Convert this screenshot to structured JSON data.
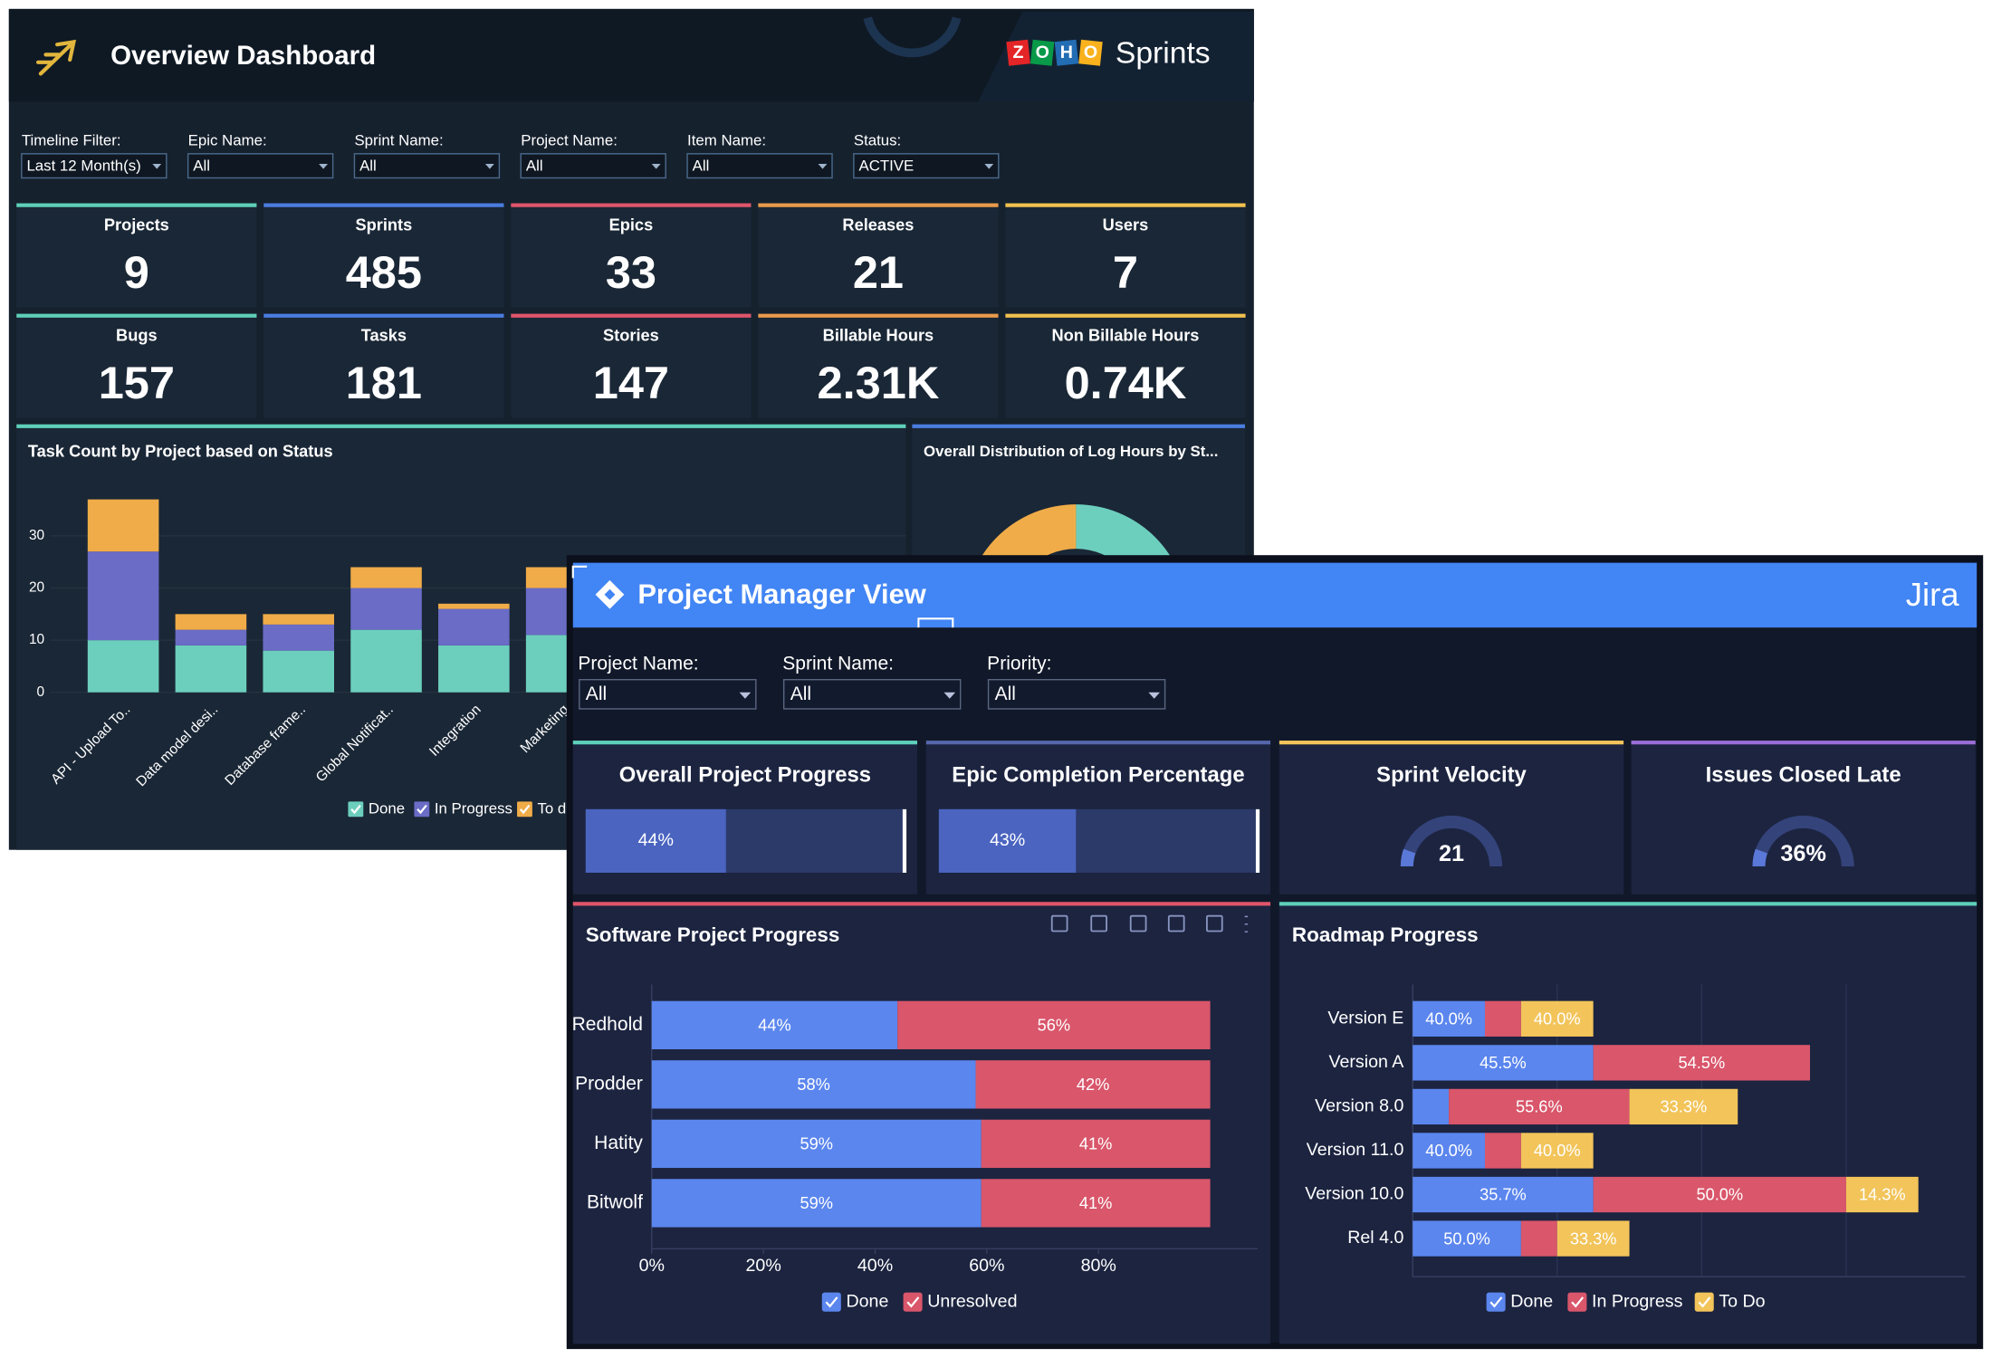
{
  "overview": {
    "title": "Overview Dashboard",
    "logo": [
      "Z",
      "O",
      "H",
      "O"
    ],
    "brand": "Sprints",
    "filters": [
      {
        "label": "Timeline Filter:",
        "value": "Last 12 Month(s)"
      },
      {
        "label": "Epic Name:",
        "value": "All"
      },
      {
        "label": "Sprint Name:",
        "value": "All"
      },
      {
        "label": "Project Name:",
        "value": "All"
      },
      {
        "label": "Item Name:",
        "value": "All"
      },
      {
        "label": "Status:",
        "value": "ACTIVE"
      }
    ],
    "kpis": [
      {
        "label": "Projects",
        "value": "9",
        "color": "#5ecfb9"
      },
      {
        "label": "Sprints",
        "value": "485",
        "color": "#4a7de0"
      },
      {
        "label": "Epics",
        "value": "33",
        "color": "#e0556a"
      },
      {
        "label": "Releases",
        "value": "21",
        "color": "#e99a4a"
      },
      {
        "label": "Users",
        "value": "7",
        "color": "#f2c14e"
      },
      {
        "label": "Bugs",
        "value": "157",
        "color": "#5ecfb9"
      },
      {
        "label": "Tasks",
        "value": "181",
        "color": "#4a7de0"
      },
      {
        "label": "Stories",
        "value": "147",
        "color": "#e0556a"
      },
      {
        "label": "Billable Hours",
        "value": "2.31K",
        "color": "#e99a4a"
      },
      {
        "label": "Non Billable Hours",
        "value": "0.74K",
        "color": "#f2c14e"
      }
    ],
    "donut_title": "Overall Distribution of Log Hours by St..."
  },
  "jira": {
    "title": "Project Manager View",
    "brand": "Jira",
    "filters": [
      {
        "label": "Project Name:",
        "value": "All"
      },
      {
        "label": "Sprint Name:",
        "value": "All"
      },
      {
        "label": "Priority:",
        "value": "All"
      }
    ],
    "kpis": [
      {
        "title": "Overall Project Progress",
        "value": 44,
        "label": "44%",
        "display": "progress",
        "color": "#5ecfb9"
      },
      {
        "title": "Epic Completion Percentage",
        "value": 43,
        "label": "43%",
        "display": "progress",
        "color": "#5566aa"
      },
      {
        "title": "Sprint Velocity",
        "value": 21,
        "display": "gauge",
        "color": "#f2c45a"
      },
      {
        "title": "Issues Closed Late",
        "value": 36,
        "label": "36%",
        "display": "gauge",
        "color": "#9b6dd6"
      }
    ]
  },
  "chart_data": [
    {
      "type": "stacked_bar",
      "title": "Task Count by Project based on Status",
      "categories": [
        "API - Upload To..",
        "Data model desi..",
        "Database frame..",
        "Global Notificat..",
        "Integration",
        "Marketing"
      ],
      "series": [
        {
          "name": "Done",
          "color": "#6ccfbd",
          "values": [
            10,
            9,
            8,
            12,
            9,
            11
          ]
        },
        {
          "name": "In Progress",
          "color": "#6a6cc6",
          "values": [
            17,
            3,
            5,
            8,
            7,
            9
          ]
        },
        {
          "name": "To do",
          "color": "#f0ac48",
          "values": [
            10,
            3,
            2,
            4,
            1,
            4
          ]
        }
      ],
      "ylim": [
        0,
        38
      ],
      "yticks": [
        0,
        10,
        20,
        30
      ],
      "grid": true
    },
    {
      "type": "hbar",
      "title": "Software Project Progress",
      "categories": [
        "Redhold",
        "Prodder",
        "Hatity",
        "Bitwolf"
      ],
      "series": [
        {
          "name": "Done",
          "color": "#5b86ee",
          "values": [
            44,
            58,
            59,
            59
          ],
          "value_labels": [
            "44%",
            "58%",
            "59%",
            "59%"
          ]
        },
        {
          "name": "Unresolved",
          "color": "#d9566b",
          "values": [
            56,
            42,
            41,
            41
          ],
          "value_labels": [
            "56%",
            "42%",
            "41%",
            "41%"
          ]
        }
      ],
      "xlim": [
        0,
        108.5
      ],
      "xticks": [
        {
          "value": 0,
          "label": "0%"
        },
        {
          "value": 20,
          "label": "20%"
        },
        {
          "value": 40,
          "label": "40%"
        },
        {
          "value": 60,
          "label": "60%"
        },
        {
          "value": 80,
          "label": "80%"
        }
      ]
    },
    {
      "type": "hbar",
      "title": "Roadmap Progress",
      "categories": [
        "Version E",
        "Version A",
        "Version 8.0",
        "Version 11.0",
        "Version 10.0",
        "Rel 4.0"
      ],
      "series": [
        {
          "name": "Done",
          "color": "#5b86ee",
          "values": [
            2,
            5,
            1,
            2,
            5,
            3
          ],
          "percent_labels": [
            "40.0%",
            "45.5%",
            null,
            "40.0%",
            "35.7%",
            "50.0%"
          ]
        },
        {
          "name": "In Progress",
          "color": "#d9566b",
          "values": [
            1,
            6,
            5,
            1,
            7,
            1
          ],
          "percent_labels": [
            null,
            "54.5%",
            "55.6%",
            null,
            "50.0%",
            null
          ]
        },
        {
          "name": "To Do",
          "color": "#f2c45a",
          "values": [
            2,
            0,
            3,
            2,
            2,
            2
          ],
          "percent_labels": [
            "40.0%",
            null,
            "33.3%",
            "40.0%",
            "14.3%",
            "33.3%"
          ]
        }
      ],
      "xlim": [
        0,
        15.3
      ],
      "xgrid": [
        0,
        4,
        8,
        12
      ]
    }
  ]
}
